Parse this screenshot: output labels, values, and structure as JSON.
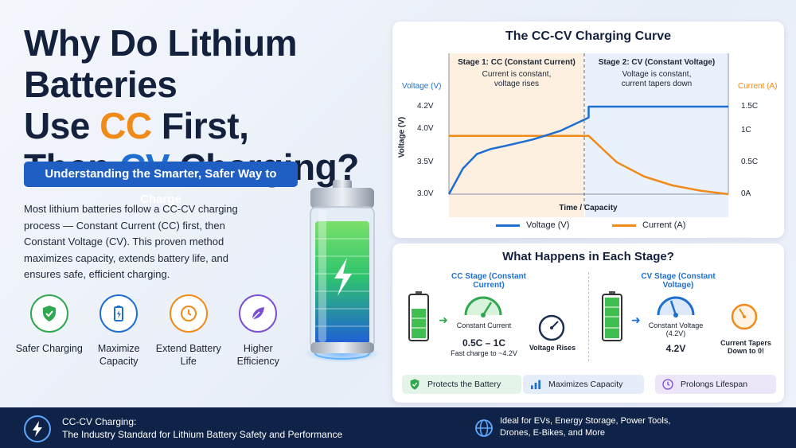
{
  "title": {
    "line1": "Why Do Lithium Batteries",
    "line2_pre": "Use ",
    "line2_hl": "CC",
    "line2_post": " First,",
    "line3_pre": "Then ",
    "line3_hl": "CV",
    "line3_post": " Charging?"
  },
  "subtitle": "Understanding the Smarter, Safer Way to Charge",
  "intro": "Most lithium batteries follow a CC-CV charging process — Constant Current (CC) first, then Constant Voltage (CV). This proven method maximizes capacity, extends battery life, and ensures safe, efficient charging.",
  "benefits": [
    {
      "label": "Safer Charging",
      "icon": "shield-check-icon",
      "color": "#2fa84f"
    },
    {
      "label": "Maximize Capacity",
      "icon": "battery-icon",
      "color": "#1f6fd1"
    },
    {
      "label": "Extend Battery Life",
      "icon": "clock-icon",
      "color": "#f08a18"
    },
    {
      "label": "Higher Efficiency",
      "icon": "leaf-icon",
      "color": "#7a4fd1"
    }
  ],
  "chart": {
    "title": "The CC-CV Charging Curve",
    "stage1_title": "Stage 1: CC (Constant Current)",
    "stage1_desc": "Current is constant, voltage rises",
    "stage2_title": "Stage 2: CV (Constant Voltage)",
    "stage2_desc": "Voltage is constant, current tapers down",
    "left_axis_header": "Voltage (V)",
    "right_axis_header": "Current (A)",
    "ylabel": "Voltage (V)",
    "xlabel": "Time / Capacity",
    "left_ticks": [
      "4.2V",
      "4.0V",
      "3.5V",
      "3.0V"
    ],
    "right_ticks": [
      "1.5C",
      "1C",
      "0.5C",
      "0A"
    ],
    "legend_voltage": "Voltage (V)",
    "legend_current": "Current (A)",
    "voltage_color": "#1f6fd1",
    "current_color": "#f08a18"
  },
  "chart_data": {
    "type": "line",
    "x": [
      0,
      0.05,
      0.1,
      0.15,
      0.2,
      0.3,
      0.4,
      0.5,
      0.5,
      0.6,
      0.7,
      0.8,
      0.9,
      1.0
    ],
    "series": [
      {
        "name": "Voltage (V)",
        "axis": "left",
        "values": [
          3.0,
          3.35,
          3.55,
          3.62,
          3.66,
          3.75,
          3.87,
          4.05,
          4.2,
          4.2,
          4.2,
          4.2,
          4.2,
          4.2
        ]
      },
      {
        "name": "Current (A)",
        "axis": "right",
        "values": [
          1.0,
          1.0,
          1.0,
          1.0,
          1.0,
          1.0,
          1.0,
          1.0,
          1.0,
          0.55,
          0.3,
          0.15,
          0.06,
          0.0
        ]
      }
    ],
    "xlabel": "Time / Capacity",
    "ylabel": "Voltage (V)",
    "y2label": "Current (A)",
    "ylim": [
      3.0,
      4.2
    ],
    "y2lim": [
      0,
      1.5
    ],
    "stage_split": 0.5
  },
  "stages": {
    "title": "What Happens in Each Stage?",
    "cc_label": "CC Stage (Constant Current)",
    "cv_label": "CV Stage (Constant Voltage)",
    "cc_gauge_label": "Constant Current",
    "cc_value": "0.5C – 1C",
    "cc_note": "Fast charge to ~4.2V",
    "cc_rises": "Voltage Rises",
    "cv_gauge_label": "Constant Voltage (4.2V)",
    "cv_value": "4.2V",
    "cv_tapers": "Current Tapers Down to 0!"
  },
  "tags": [
    {
      "label": "Protects the Battery",
      "icon": "shield-check-icon",
      "bg": "#e5f4e8",
      "color": "#2fa84f"
    },
    {
      "label": "Maximizes Capacity",
      "icon": "bar-chart-icon",
      "bg": "#e4edf9",
      "color": "#1f6fd1"
    },
    {
      "label": "Prolongs Lifespan",
      "icon": "clock-icon",
      "bg": "#ece6f8",
      "color": "#7a4fd1"
    }
  ],
  "footer": {
    "line1": "CC-CV Charging:",
    "line2": "The Industry Standard for Lithium Battery Safety and Performance",
    "right_line1": "Ideal for EVs, Energy Storage, Power Tools,",
    "right_line2": "Drones, E-Bikes, and More"
  }
}
